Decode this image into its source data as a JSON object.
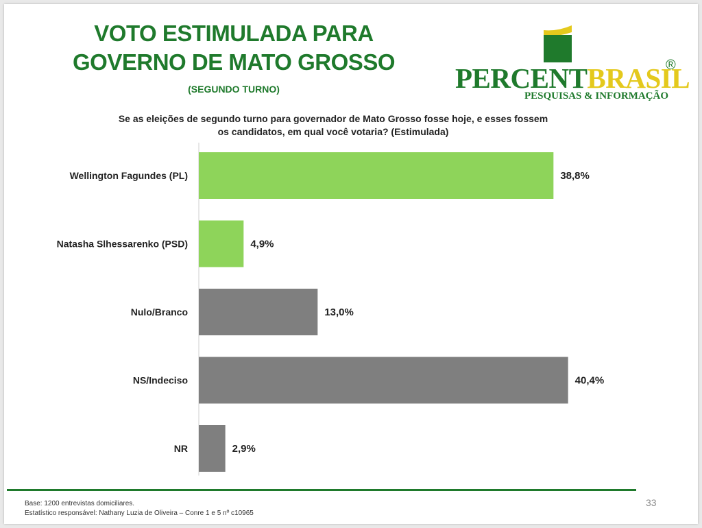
{
  "slide": {
    "title_line1": "VOTO ESTIMULADA PARA",
    "title_line2": "GOVERNO DE MATO GROSSO",
    "subtitle": "(SEGUNDO TURNO)",
    "question_line1": "Se as eleições de segundo turno para governador de Mato Grosso fosse hoje, e esses fossem",
    "question_line2": "os candidatos, em qual você votaria? (Estimulada)",
    "footer_line1": "Base: 1200 entrevistas domiciliares.",
    "footer_line2": "Estatístico responsável: Nathany Luzia de Oliveira – Conre 1 e 5 nº c10965",
    "page_number": "33"
  },
  "logo": {
    "wordmark_part1": "PERCENT",
    "wordmark_part2": "BRASIL",
    "registered_mark": "®",
    "tagline": "PESQUISAS & INFORMAÇÃO"
  },
  "colors": {
    "brand_green": "#1f7a2c",
    "brand_yellow": "#e4c91d",
    "candidate_bar": "#8ed45a",
    "other_bar": "#7f7f7f"
  },
  "chart_data": {
    "type": "bar",
    "orientation": "horizontal",
    "categories": [
      "Wellington Fagundes (PL)",
      "Natasha Slhessarenko (PSD)",
      "Nulo/Branco",
      "NS/Indeciso",
      "NR"
    ],
    "values": [
      38.8,
      4.9,
      13.0,
      40.4,
      2.9
    ],
    "value_labels": [
      "38,8%",
      "4,9%",
      "13,0%",
      "40,4%",
      "2,9%"
    ],
    "bar_colors": [
      "#8ed45a",
      "#8ed45a",
      "#7f7f7f",
      "#7f7f7f",
      "#7f7f7f"
    ],
    "xlim": [
      0,
      42
    ],
    "grid": false,
    "legend": "none"
  }
}
